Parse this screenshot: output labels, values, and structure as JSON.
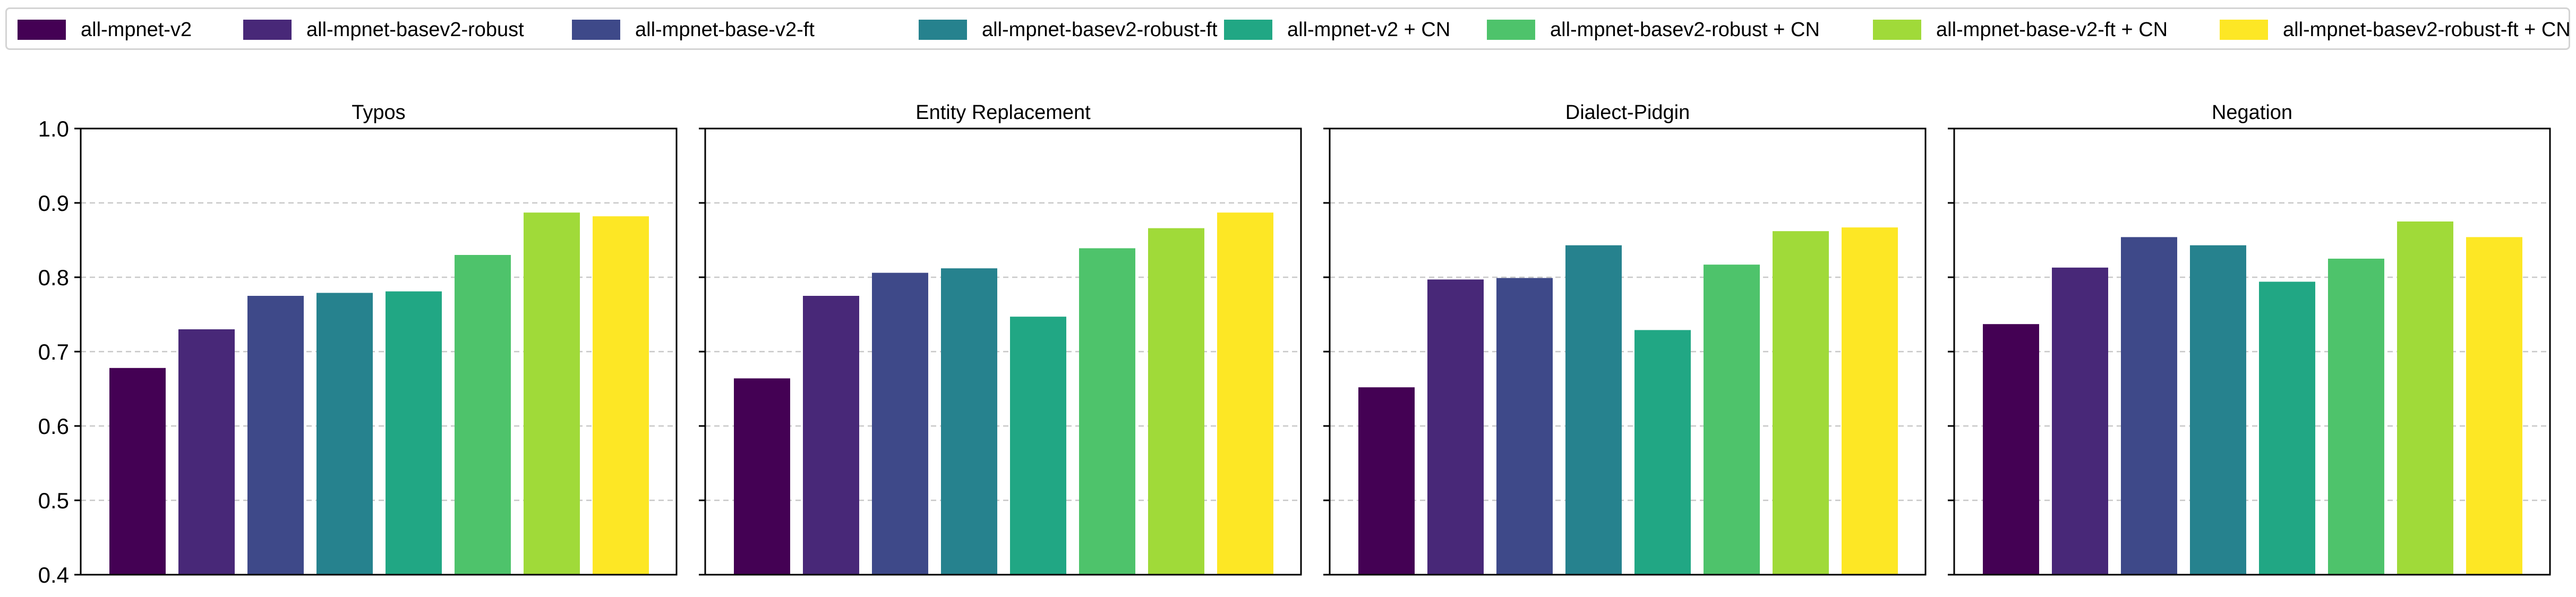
{
  "colors": [
    "#440154",
    "#482878",
    "#3e4989",
    "#26828e",
    "#21a784",
    "#4ec36b",
    "#a0da39",
    "#fde725"
  ],
  "chart_data": {
    "type": "bar",
    "grid": true,
    "legend_position": "top",
    "series_names": [
      "all-mpnet-v2",
      "all-mpnet-basev2-robust",
      "all-mpnet-base-v2-ft",
      "all-mpnet-basev2-robust-ft",
      "all-mpnet-v2 + CN",
      "all-mpnet-basev2-robust + CN",
      "all-mpnet-base-v2-ft + CN",
      "all-mpnet-basev2-robust-ft + CN"
    ],
    "ylim": [
      0.4,
      1.0
    ],
    "yticks": [
      "0.4",
      "0.5",
      "0.6",
      "0.7",
      "0.8",
      "0.9",
      "1.0"
    ],
    "panels": [
      {
        "title": "Typos",
        "values": [
          0.678,
          0.73,
          0.775,
          0.779,
          0.781,
          0.83,
          0.887,
          0.882
        ]
      },
      {
        "title": "Entity Replacement",
        "values": [
          0.664,
          0.775,
          0.806,
          0.812,
          0.747,
          0.839,
          0.866,
          0.887
        ]
      },
      {
        "title": "Dialect-Pidgin",
        "values": [
          0.652,
          0.797,
          0.799,
          0.843,
          0.729,
          0.817,
          0.862,
          0.867
        ]
      },
      {
        "title": "Negation",
        "values": [
          0.737,
          0.813,
          0.854,
          0.843,
          0.794,
          0.825,
          0.875,
          0.854
        ]
      }
    ]
  }
}
